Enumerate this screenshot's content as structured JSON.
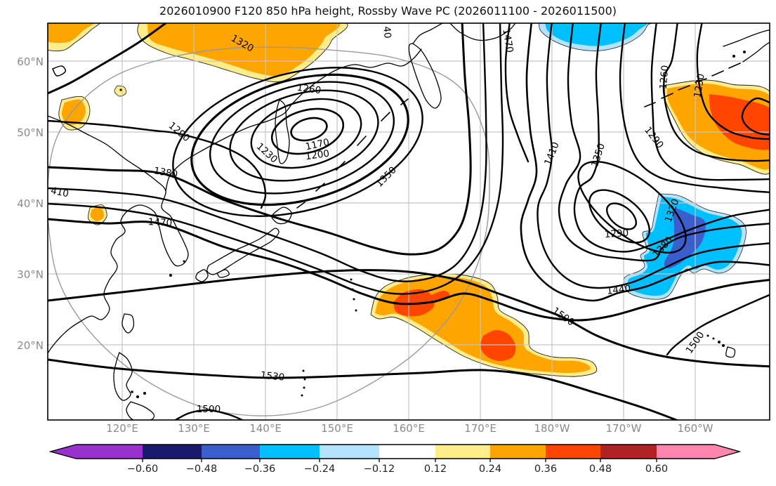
{
  "title": "2026010900 F120 850 hPa height, Rossby Wave PC (2026011100 - 2026011500)",
  "axes": {
    "lat": [
      "60°N",
      "50°N",
      "40°N",
      "30°N",
      "20°N"
    ],
    "lon": [
      "120°E",
      "130°E",
      "140°E",
      "150°E",
      "160°E",
      "170°E",
      "180°W",
      "170°W",
      "160°W"
    ]
  },
  "contour_labels": [
    {
      "text": "1320"
    },
    {
      "text": "1260"
    },
    {
      "text": "1170"
    },
    {
      "text": "1200"
    },
    {
      "text": "1230"
    },
    {
      "text": "1290"
    },
    {
      "text": "1350"
    },
    {
      "text": "1380"
    },
    {
      "text": "410"
    },
    {
      "text": "1470"
    },
    {
      "text": "1470"
    },
    {
      "text": "40"
    },
    {
      "text": "1440"
    },
    {
      "text": "1290"
    },
    {
      "text": "1410"
    },
    {
      "text": "1350"
    },
    {
      "text": "1290"
    },
    {
      "text": "1320"
    },
    {
      "text": "1380"
    },
    {
      "text": "1260"
    },
    {
      "text": "1230"
    },
    {
      "text": "1500"
    },
    {
      "text": "1530"
    },
    {
      "text": "1500"
    },
    {
      "text": "1500"
    }
  ],
  "colorbar": {
    "ticks": [
      "−0.60",
      "−0.48",
      "−0.36",
      "−0.24",
      "−0.12",
      "0.12",
      "0.24",
      "0.36",
      "0.48",
      "0.60"
    ],
    "colors": [
      "#9932CC",
      "#191970",
      "#3A5FCD",
      "#00BFFF",
      "#B3E3FF",
      "#FFFFFF",
      "#FFEC8B",
      "#FFA500",
      "#FF4500",
      "#B22222",
      "#FF85AE"
    ]
  },
  "chart_data": {
    "type": "contour-map",
    "title": "2026010900 F120 850 hPa height, Rossby Wave PC (2026011100 - 2026011500)",
    "field": "850 hPa geopotential height (m), contour interval 30",
    "contour_levels": [
      1170,
      1200,
      1230,
      1260,
      1290,
      1320,
      1350,
      1380,
      1410,
      1440,
      1470,
      1500,
      1530
    ],
    "lon_ticks": [
      "120°E",
      "130°E",
      "140°E",
      "150°E",
      "160°E",
      "170°E",
      "180°W",
      "170°W",
      "160°W"
    ],
    "lat_ticks": [
      "60°N",
      "50°N",
      "40°N",
      "30°N",
      "20°N"
    ],
    "lon_range": [
      "110°E",
      "150°W"
    ],
    "lat_range": [
      "10°N",
      "65°N"
    ],
    "shading": "Rossby Wave PC amplitude",
    "colorbar_ticks": [
      -0.6,
      -0.48,
      -0.36,
      -0.24,
      -0.12,
      0.12,
      0.24,
      0.36,
      0.48,
      0.6
    ],
    "colorbar_colors": [
      "#9932CC",
      "#191970",
      "#3A5FCD",
      "#00BFFF",
      "#B3E3FF",
      "#FFFFFF",
      "#FFEC8B",
      "#FFA500",
      "#FF4500",
      "#B22222",
      "#FF85AE"
    ],
    "lows": [
      {
        "center": "145°E 50°N",
        "min_contour": 1170
      },
      {
        "center": "179°W 38°N",
        "min_contour": 1290
      },
      {
        "center": "158°W 53°N",
        "min_contour": 1230
      }
    ],
    "anomaly_regions": [
      {
        "sign": "positive",
        "approx": "113°E 64°N",
        "peak_class": "0.24–0.36"
      },
      {
        "sign": "positive",
        "approx": "137°E 62°N",
        "peak_class": "0.24–0.36"
      },
      {
        "sign": "positive",
        "approx": "113°E 53°N",
        "peak_class": "0.24–0.36"
      },
      {
        "sign": "positive",
        "approx": "117°E 38°N",
        "peak_class": "0.24–0.36"
      },
      {
        "sign": "positive",
        "approx": "168°E 23°N",
        "peak_class": "0.36–0.48"
      },
      {
        "sign": "positive",
        "approx": "157°W 51°N",
        "peak_class": "0.36–0.48"
      },
      {
        "sign": "negative",
        "approx": "174°W 64°N",
        "peak_class": "−0.24–−0.36"
      },
      {
        "sign": "negative",
        "approx": "161°W 34°N",
        "peak_class": "−0.36–−0.48"
      }
    ],
    "extra": "gray great-circle ring centered near 147°E 36°N"
  }
}
